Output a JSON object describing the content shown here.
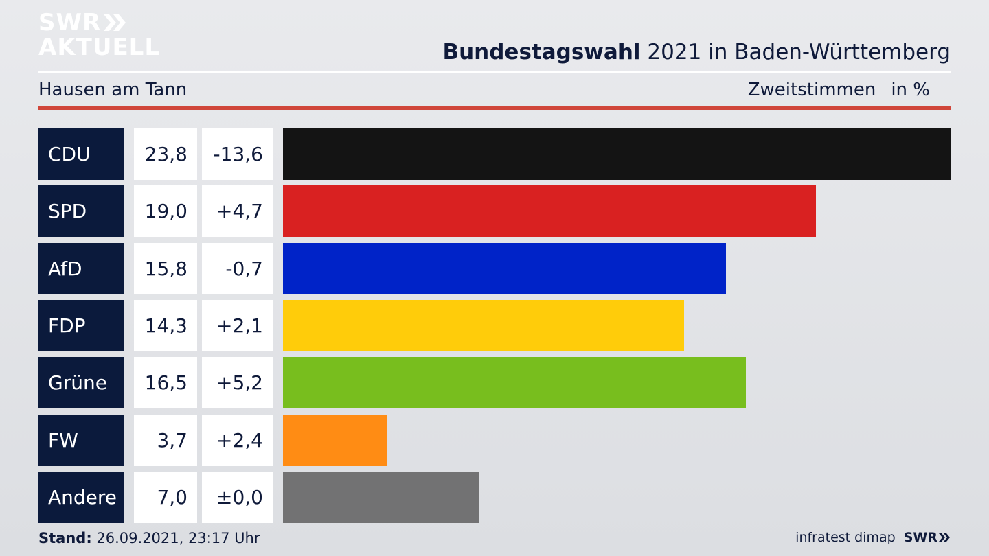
{
  "brand": {
    "logo_line1": "SWR",
    "logo_line2": "AKTUELL"
  },
  "header": {
    "title_bold": "Bundestagswahl",
    "title_rest": " 2021 in Baden-Württemberg",
    "place": "Hausen am Tann",
    "vote_type": "Zweitstimmen",
    "unit": "in %"
  },
  "chart_data": {
    "type": "bar",
    "orientation": "horizontal",
    "categories": [
      "CDU",
      "SPD",
      "AfD",
      "FDP",
      "Grüne",
      "FW",
      "Andere"
    ],
    "series": [
      {
        "values": [
          23.8,
          19.0,
          15.8,
          14.3,
          16.5,
          3.7,
          7.0
        ],
        "labels": [
          "23,8",
          "19,0",
          "15,8",
          "14,3",
          "16,5",
          "3,7",
          "7,0"
        ],
        "colors": [
          "#141414",
          "#d92121",
          "#0023c8",
          "#ffcc0a",
          "#78be1e",
          "#ff8c14",
          "#727273"
        ]
      }
    ],
    "change_labels": [
      "-13,6",
      "+4,7",
      "-0,7",
      "+2,1",
      "+5,2",
      "+2,4",
      "±0,0"
    ],
    "changes": [
      -13.6,
      4.7,
      -0.7,
      2.1,
      5.2,
      2.4,
      0.0
    ],
    "xlim": [
      0,
      23.8
    ],
    "grid": false,
    "legend": "none"
  },
  "footer": {
    "stand_label": "Stand:",
    "stand_value": " 26.09.2021, 23:17 Uhr",
    "source": "infratest dimap",
    "brand": "SWR"
  },
  "colors": {
    "navy": "#0b1a3c",
    "accent_red": "#d0463a",
    "background": "#e2e3e6"
  }
}
